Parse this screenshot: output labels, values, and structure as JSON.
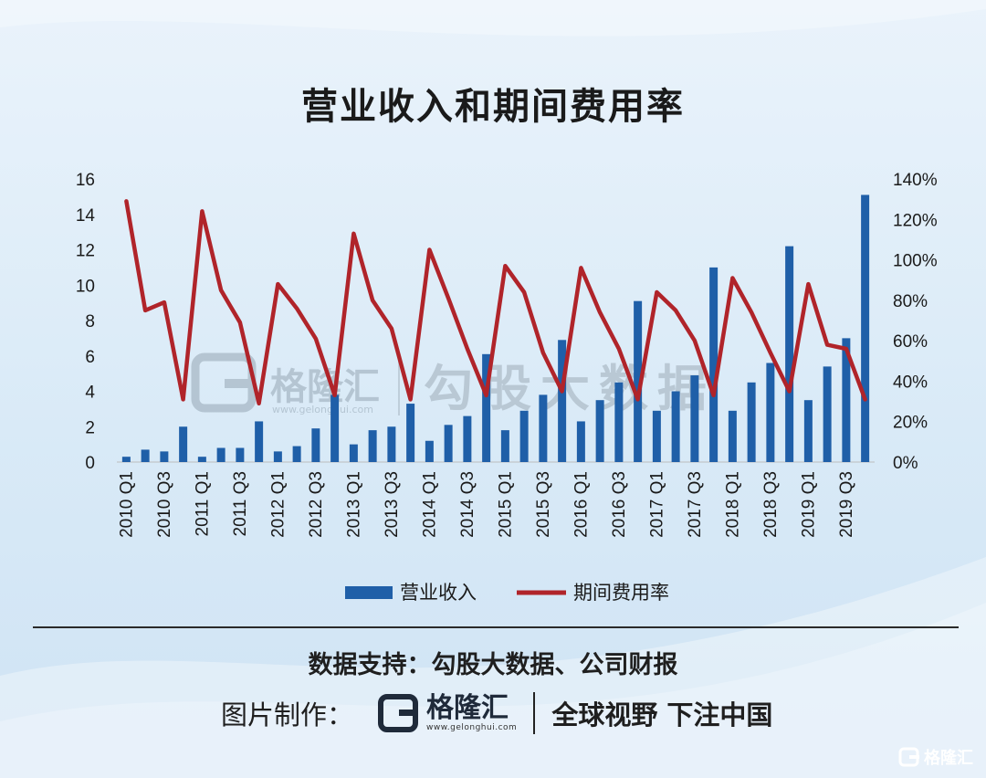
{
  "title": "营业收入和期间费用率",
  "chart_data": {
    "type": "bar+line",
    "title": "营业收入和期间费用率",
    "categories": [
      "2010 Q1",
      "2010 Q2",
      "2010 Q3",
      "2010 Q4",
      "2011 Q1",
      "2011 Q2",
      "2011 Q3",
      "2011 Q4",
      "2012 Q1",
      "2012 Q2",
      "2012 Q3",
      "2012 Q4",
      "2013 Q1",
      "2013 Q2",
      "2013 Q3",
      "2013 Q4",
      "2014 Q1",
      "2014 Q2",
      "2014 Q3",
      "2014 Q4",
      "2015 Q1",
      "2015 Q2",
      "2015 Q3",
      "2015 Q4",
      "2016 Q1",
      "2016 Q2",
      "2016 Q3",
      "2016 Q4",
      "2017 Q1",
      "2017 Q2",
      "2017 Q3",
      "2017 Q4",
      "2018 Q1",
      "2018 Q2",
      "2018 Q3",
      "2018 Q4",
      "2019 Q1",
      "2019 Q2",
      "2019 Q3",
      "2019 Q4"
    ],
    "tick_labels": [
      "2010 Q1",
      "2010 Q3",
      "2011 Q1",
      "2011 Q3",
      "2012 Q1",
      "2012 Q3",
      "2013 Q1",
      "2013 Q3",
      "2014 Q1",
      "2014 Q3",
      "2015 Q1",
      "2015 Q3",
      "2016 Q1",
      "2016 Q3",
      "2017 Q1",
      "2017 Q3",
      "2018 Q1",
      "2018 Q3",
      "2019 Q1",
      "2019 Q3"
    ],
    "series": [
      {
        "name": "营业收入",
        "type": "bar",
        "axis": "left",
        "color": "#1f5fa8",
        "values": [
          0.3,
          0.7,
          0.6,
          2.0,
          0.3,
          0.8,
          0.8,
          2.3,
          0.6,
          0.9,
          1.9,
          3.8,
          1.0,
          1.8,
          2.0,
          3.3,
          1.2,
          2.1,
          2.6,
          6.1,
          1.8,
          2.9,
          3.8,
          6.9,
          2.3,
          3.5,
          4.5,
          9.1,
          2.9,
          4.0,
          4.9,
          11.0,
          2.9,
          4.5,
          5.6,
          12.2,
          3.5,
          5.4,
          7.0,
          15.1
        ]
      },
      {
        "name": "期间费用率",
        "type": "line",
        "axis": "right",
        "color": "#b0242a",
        "values": [
          1.29,
          0.75,
          0.79,
          0.31,
          1.24,
          0.85,
          0.69,
          0.29,
          0.88,
          0.76,
          0.61,
          0.33,
          1.13,
          0.8,
          0.66,
          0.31,
          1.05,
          0.81,
          0.56,
          0.33,
          0.97,
          0.84,
          0.54,
          0.35,
          0.96,
          0.74,
          0.56,
          0.31,
          0.84,
          0.75,
          0.6,
          0.33,
          0.91,
          0.74,
          0.54,
          0.35,
          0.88,
          0.58,
          0.56,
          0.31
        ]
      }
    ],
    "ylim_left": [
      0,
      16
    ],
    "yticks_left": [
      "0",
      "2",
      "4",
      "6",
      "8",
      "10",
      "12",
      "14",
      "16"
    ],
    "ylim_right": [
      0,
      1.4
    ],
    "yticks_right": [
      "0%",
      "20%",
      "40%",
      "60%",
      "80%",
      "100%",
      "120%",
      "140%"
    ],
    "grid": false,
    "legend_position": "bottom"
  },
  "legend": {
    "bar_label": "营业收入",
    "line_label": "期间费用率"
  },
  "colors": {
    "bar": "#1f5fa8",
    "line": "#b0242a",
    "text": "#1a1a1a"
  },
  "watermark": {
    "brand": "格隆汇",
    "url": "www.gelonghui.com",
    "big_text": "勾股大数据"
  },
  "footer": {
    "source": "数据支持：勾股大数据、公司财报",
    "maker_label": "图片制作：",
    "brand_name": "格隆汇",
    "brand_url": "www.gelonghui.com",
    "slogan": "全球视野 下注中国",
    "corner_brand": "格隆汇"
  }
}
